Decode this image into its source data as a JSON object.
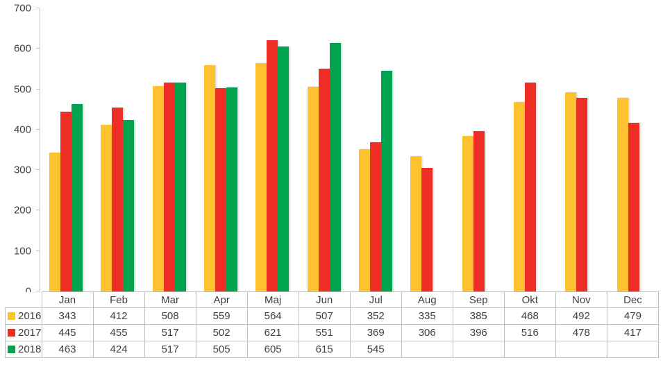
{
  "chart_data": {
    "type": "bar",
    "title": "",
    "xlabel": "",
    "ylabel": "",
    "categories": [
      "Jan",
      "Feb",
      "Mar",
      "Apr",
      "Maj",
      "Jun",
      "Jul",
      "Aug",
      "Sep",
      "Okt",
      "Nov",
      "Dec"
    ],
    "series": [
      {
        "name": "2016",
        "color": "#FDC22F",
        "values": [
          343,
          412,
          508,
          559,
          564,
          507,
          352,
          335,
          385,
          468,
          492,
          479
        ]
      },
      {
        "name": "2017",
        "color": "#EE2D24",
        "values": [
          445,
          455,
          517,
          502,
          621,
          551,
          369,
          306,
          396,
          516,
          478,
          417
        ]
      },
      {
        "name": "2018",
        "color": "#00A44F",
        "values": [
          463,
          424,
          517,
          505,
          605,
          615,
          545,
          null,
          null,
          null,
          null,
          null
        ]
      }
    ],
    "ylim": [
      0,
      700
    ],
    "yticks": [
      0,
      100,
      200,
      300,
      400,
      500,
      600,
      700
    ],
    "grid": false,
    "legend_position": "table-left-column",
    "colors": {
      "axis_line": "#bfbfbf",
      "table_border": "#bfbfbf",
      "text": "#404040"
    }
  }
}
